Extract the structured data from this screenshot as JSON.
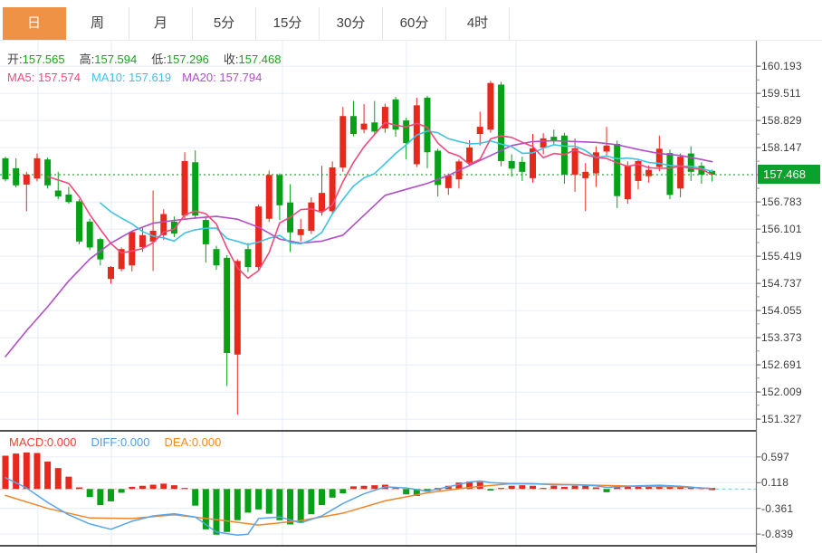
{
  "toolbar": {
    "tabs": [
      {
        "label": "日",
        "active": true
      },
      {
        "label": "周",
        "active": false
      },
      {
        "label": "月",
        "active": false
      },
      {
        "label": "5分",
        "active": false
      },
      {
        "label": "15分",
        "active": false
      },
      {
        "label": "30分",
        "active": false
      },
      {
        "label": "60分",
        "active": false
      },
      {
        "label": "4时",
        "active": false
      }
    ]
  },
  "quote": {
    "open_label": "开:",
    "open": "157.565",
    "high_label": "高:",
    "high": "157.594",
    "low_label": "低:",
    "low": "157.296",
    "close_label": "收:",
    "close": "157.468"
  },
  "ma_row": {
    "ma5_label": "MA5:",
    "ma5": "157.574",
    "ma10_label": "MA10:",
    "ma10": "157.619",
    "ma20_label": "MA20:",
    "ma20": "157.794"
  },
  "macd_row": {
    "macd_label": "MACD:",
    "macd": "0.000",
    "diff_label": "DIFF:",
    "diff": "0.000",
    "dea_label": "DEA:",
    "dea": "0.000"
  },
  "colors": {
    "up_candle": "#e7291d",
    "down_candle": "#07a118",
    "price_tag": "#0aa12c",
    "current_price_line": "#2fae42",
    "ma5": "#f0497c",
    "ma10": "#3fc3e2",
    "ma20": "#b04ec9",
    "diff_line": "#58a5e8",
    "dea_line": "#f0862c",
    "grid": "#e6edf5",
    "axis_line": "#777777",
    "panel_divider": "#151515",
    "active_tab": "#ef9246"
  },
  "chart_data": {
    "type": "candlestick",
    "title": "Daily candlestick chart with MA5/MA10/MA20 overlays and MACD sub-panel",
    "legend_position": "top-left overlay",
    "grid": true,
    "price_axis": {
      "side": "right",
      "ticks": [
        160.193,
        159.511,
        158.829,
        158.147,
        156.783,
        156.101,
        155.419,
        154.737,
        154.055,
        153.373,
        152.691,
        152.009,
        151.327
      ],
      "current_price": 157.468,
      "current_price_label": "157.468"
    },
    "indicator_axis": {
      "side": "right",
      "ticks": [
        0.597,
        0.118,
        -0.361,
        -0.839
      ]
    },
    "candles_format": "[open, high, low, close] — red=up green=down (CN convention)",
    "candles": [
      [
        157.88,
        157.92,
        157.3,
        157.35
      ],
      [
        157.63,
        157.88,
        157.15,
        157.2
      ],
      [
        157.22,
        157.54,
        156.55,
        157.47
      ],
      [
        157.37,
        158.0,
        157.3,
        157.88
      ],
      [
        157.85,
        157.9,
        157.12,
        157.2
      ],
      [
        157.07,
        157.54,
        156.85,
        156.92
      ],
      [
        156.97,
        157.16,
        156.74,
        156.78
      ],
      [
        156.8,
        156.85,
        155.72,
        155.79
      ],
      [
        156.29,
        156.36,
        155.57,
        155.64
      ],
      [
        155.85,
        155.88,
        155.19,
        155.34
      ],
      [
        154.85,
        155.17,
        154.73,
        155.15
      ],
      [
        155.1,
        155.64,
        155.04,
        155.6
      ],
      [
        155.19,
        156.06,
        155.04,
        156.03
      ],
      [
        155.65,
        156.13,
        155.53,
        155.95
      ],
      [
        155.79,
        157.07,
        155.05,
        156.06
      ],
      [
        155.95,
        156.6,
        155.83,
        156.48
      ],
      [
        156.29,
        156.42,
        155.9,
        155.99
      ],
      [
        156.44,
        158.03,
        156.35,
        157.81
      ],
      [
        157.78,
        158.08,
        156.36,
        156.44
      ],
      [
        156.33,
        156.42,
        155.26,
        155.72
      ],
      [
        155.6,
        155.68,
        155.08,
        155.19
      ],
      [
        155.38,
        155.45,
        152.16,
        152.99
      ],
      [
        152.95,
        155.35,
        151.44,
        155.3
      ],
      [
        155.6,
        155.75,
        155.02,
        155.15
      ],
      [
        155.15,
        156.72,
        155.06,
        156.67
      ],
      [
        156.36,
        157.57,
        156.28,
        157.46
      ],
      [
        157.46,
        157.5,
        156.33,
        156.7
      ],
      [
        156.77,
        157.23,
        155.53,
        156.02
      ],
      [
        155.95,
        156.36,
        155.79,
        156.1
      ],
      [
        156.06,
        156.9,
        155.98,
        156.77
      ],
      [
        156.55,
        157.69,
        156.44,
        157.01
      ],
      [
        156.55,
        157.8,
        156.48,
        157.65
      ],
      [
        157.65,
        159.17,
        157.54,
        158.94
      ],
      [
        158.94,
        159.32,
        158.43,
        158.49
      ],
      [
        158.6,
        159.24,
        158.51,
        158.75
      ],
      [
        158.78,
        159.32,
        158.45,
        158.55
      ],
      [
        158.63,
        159.25,
        158.52,
        159.17
      ],
      [
        159.36,
        159.42,
        158.42,
        158.6
      ],
      [
        158.83,
        158.9,
        157.85,
        158.26
      ],
      [
        157.73,
        159.4,
        157.66,
        159.21
      ],
      [
        159.4,
        159.45,
        157.63,
        158.03
      ],
      [
        158.07,
        158.12,
        156.92,
        157.21
      ],
      [
        157.13,
        157.5,
        156.96,
        157.45
      ],
      [
        157.35,
        157.85,
        157.12,
        157.8
      ],
      [
        157.77,
        158.33,
        157.68,
        158.15
      ],
      [
        158.49,
        159.05,
        158.2,
        158.67
      ],
      [
        158.6,
        159.82,
        158.52,
        159.77
      ],
      [
        159.73,
        159.8,
        157.68,
        157.81
      ],
      [
        157.81,
        157.98,
        157.42,
        157.62
      ],
      [
        157.79,
        157.92,
        157.31,
        157.54
      ],
      [
        157.38,
        158.49,
        157.27,
        158.13
      ],
      [
        158.15,
        158.51,
        157.98,
        158.38
      ],
      [
        158.42,
        158.6,
        158.22,
        158.33
      ],
      [
        158.45,
        158.52,
        157.24,
        157.47
      ],
      [
        157.47,
        158.38,
        157.04,
        158.13
      ],
      [
        157.38,
        157.76,
        156.55,
        157.54
      ],
      [
        157.5,
        158.18,
        157.16,
        158.03
      ],
      [
        158.05,
        158.67,
        157.95,
        158.2
      ],
      [
        158.24,
        158.32,
        156.63,
        156.93
      ],
      [
        156.85,
        157.8,
        156.74,
        157.69
      ],
      [
        157.31,
        157.85,
        157.1,
        157.81
      ],
      [
        157.43,
        157.7,
        157.27,
        157.59
      ],
      [
        157.66,
        158.45,
        157.55,
        158.12
      ],
      [
        158.01,
        158.1,
        156.85,
        156.96
      ],
      [
        157.12,
        158.0,
        156.9,
        157.92
      ],
      [
        158.0,
        158.18,
        157.31,
        157.54
      ],
      [
        157.69,
        157.78,
        157.24,
        157.47
      ],
      [
        157.565,
        157.594,
        157.296,
        157.468
      ]
    ],
    "ma20_points": [
      [
        1,
        152.9
      ],
      [
        3,
        153.55
      ],
      [
        5,
        154.15
      ],
      [
        7,
        154.8
      ],
      [
        9,
        155.35
      ],
      [
        11,
        155.75
      ],
      [
        13,
        156.05
      ],
      [
        15,
        156.25
      ],
      [
        17,
        156.32
      ],
      [
        19,
        156.38
      ],
      [
        21,
        156.42
      ],
      [
        23,
        156.35
      ],
      [
        25,
        156.15
      ],
      [
        27,
        155.85
      ],
      [
        29,
        155.75
      ],
      [
        31,
        155.8
      ],
      [
        33,
        155.95
      ],
      [
        35,
        156.45
      ],
      [
        37,
        156.95
      ],
      [
        39,
        157.1
      ],
      [
        41,
        157.25
      ],
      [
        43,
        157.45
      ],
      [
        45,
        157.7
      ],
      [
        47,
        157.95
      ],
      [
        49,
        158.2
      ],
      [
        51,
        158.3
      ],
      [
        53,
        158.32
      ],
      [
        55,
        158.3
      ],
      [
        57,
        158.28
      ],
      [
        59,
        158.22
      ],
      [
        61,
        158.1
      ],
      [
        63,
        158.0
      ],
      [
        65,
        157.95
      ],
      [
        67,
        157.85
      ],
      [
        68,
        157.794
      ]
    ],
    "macd_hist": [
      0.62,
      0.66,
      0.68,
      0.67,
      0.51,
      0.39,
      0.23,
      0.03,
      -0.15,
      -0.3,
      -0.23,
      -0.07,
      0.04,
      0.06,
      0.08,
      0.1,
      0.07,
      0.02,
      -0.31,
      -0.75,
      -0.85,
      -0.8,
      -0.58,
      -0.44,
      -0.38,
      -0.46,
      -0.58,
      -0.66,
      -0.63,
      -0.47,
      -0.3,
      -0.16,
      -0.08,
      0.05,
      0.06,
      0.07,
      0.08,
      0.02,
      -0.1,
      -0.13,
      -0.05,
      0.01,
      0.06,
      0.12,
      0.14,
      0.13,
      -0.03,
      0.02,
      0.06,
      0.07,
      0.06,
      0.02,
      0.06,
      0.04,
      0.06,
      0.06,
      0.03,
      -0.06,
      0.05,
      0.05,
      0.06,
      0.07,
      0.05,
      0.04,
      0.05,
      0.03,
      0.02,
      0.0
    ],
    "diff_points": [
      [
        1,
        0.21
      ],
      [
        3,
        0.02
      ],
      [
        5,
        -0.25
      ],
      [
        7,
        -0.48
      ],
      [
        9,
        -0.65
      ],
      [
        11,
        -0.75
      ],
      [
        13,
        -0.6
      ],
      [
        15,
        -0.5
      ],
      [
        17,
        -0.46
      ],
      [
        19,
        -0.52
      ],
      [
        21,
        -0.8
      ],
      [
        23,
        -0.86
      ],
      [
        24,
        -0.84
      ],
      [
        25,
        -0.55
      ],
      [
        27,
        -0.52
      ],
      [
        29,
        -0.63
      ],
      [
        31,
        -0.5
      ],
      [
        33,
        -0.27
      ],
      [
        35,
        -0.09
      ],
      [
        37,
        0.04
      ],
      [
        39,
        0.02
      ],
      [
        41,
        -0.04
      ],
      [
        43,
        0.04
      ],
      [
        45,
        0.13
      ],
      [
        46,
        0.15
      ],
      [
        47,
        0.12
      ],
      [
        49,
        0.1
      ],
      [
        51,
        0.1
      ],
      [
        53,
        0.08
      ],
      [
        55,
        0.08
      ],
      [
        57,
        0.06
      ],
      [
        58,
        0.03
      ],
      [
        59,
        0.04
      ],
      [
        61,
        0.06
      ],
      [
        63,
        0.07
      ],
      [
        65,
        0.05
      ],
      [
        67,
        0.02
      ],
      [
        68,
        0.01
      ]
    ],
    "dea_points": [
      [
        1,
        -0.12
      ],
      [
        5,
        -0.36
      ],
      [
        9,
        -0.54
      ],
      [
        13,
        -0.55
      ],
      [
        17,
        -0.48
      ],
      [
        21,
        -0.57
      ],
      [
        25,
        -0.67
      ],
      [
        29,
        -0.59
      ],
      [
        33,
        -0.45
      ],
      [
        37,
        -0.22
      ],
      [
        41,
        -0.07
      ],
      [
        45,
        0.03
      ],
      [
        49,
        0.1
      ],
      [
        53,
        0.09
      ],
      [
        57,
        0.07
      ],
      [
        61,
        0.05
      ],
      [
        65,
        0.04
      ],
      [
        68,
        0.01
      ]
    ]
  }
}
